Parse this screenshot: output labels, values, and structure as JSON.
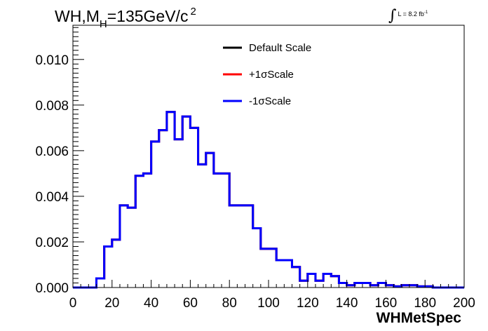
{
  "header": {
    "title_pre": "WH,M",
    "title_sub": "H",
    "title_post": "=135GeV/c",
    "title_sup": "2",
    "lumi_text": "L = 8.2 fb",
    "lumi_sup": "-1"
  },
  "colors": {
    "default": "#000000",
    "plus": "#ff0000",
    "minus": "#0000ff",
    "frame": "#000000"
  },
  "chart_data": {
    "type": "line",
    "style": "step-histogram",
    "title": "WH,MH=135GeV/c2",
    "xlabel": "WHMetSpec",
    "ylabel": "",
    "xlim": [
      0,
      200
    ],
    "ylim": [
      0,
      0.0115
    ],
    "bin_width": 4,
    "x_ticks": [
      0,
      20,
      40,
      60,
      80,
      100,
      120,
      140,
      160,
      180,
      200
    ],
    "x_tick_labels": [
      "0",
      "20",
      "40",
      "60",
      "80",
      "100",
      "120",
      "140",
      "160",
      "180",
      "200"
    ],
    "y_ticks": [
      0,
      0.002,
      0.004,
      0.006,
      0.008,
      0.01
    ],
    "y_tick_labels": [
      "0.000",
      "0.002",
      "0.004",
      "0.006",
      "0.008",
      "0.010"
    ],
    "legend_position": "top-center",
    "grid": false,
    "bin_edges": [
      0,
      4,
      8,
      12,
      16,
      20,
      24,
      28,
      32,
      36,
      40,
      44,
      48,
      52,
      56,
      60,
      64,
      68,
      72,
      76,
      80,
      84,
      88,
      92,
      96,
      100,
      104,
      108,
      112,
      116,
      120,
      124,
      128,
      132,
      136,
      140,
      144,
      148,
      152,
      156,
      160,
      164,
      168,
      172,
      176,
      180,
      184,
      188,
      192,
      196,
      200
    ],
    "series": [
      {
        "name": "Default Scale",
        "color": "#000000",
        "values": [
          0,
          0,
          0,
          0.0004,
          0.0018,
          0.0021,
          0.0036,
          0.0035,
          0.0049,
          0.005,
          0.0064,
          0.0069,
          0.0077,
          0.0065,
          0.0075,
          0.007,
          0.0054,
          0.0059,
          0.005,
          0.005,
          0.0036,
          0.0036,
          0.0036,
          0.0026,
          0.0017,
          0.0017,
          0.0012,
          0.0012,
          0.0009,
          0.0003,
          0.0006,
          0.0003,
          0.0006,
          0.0005,
          0.0002,
          0.0001,
          0.0002,
          0.0002,
          0.0001,
          0.0002,
          0.0001,
          5e-05,
          0.0001,
          0.0001,
          5e-05,
          5e-05,
          0,
          0,
          0,
          0
        ]
      },
      {
        "name": "+1σScale",
        "color": "#ff0000",
        "values": [
          0,
          0,
          0,
          0.0004,
          0.0018,
          0.0021,
          0.0036,
          0.0035,
          0.0049,
          0.005,
          0.0064,
          0.0069,
          0.0077,
          0.0065,
          0.0075,
          0.007,
          0.0054,
          0.0059,
          0.005,
          0.005,
          0.0036,
          0.0036,
          0.0036,
          0.0026,
          0.0017,
          0.0017,
          0.0012,
          0.0012,
          0.0009,
          0.0003,
          0.0006,
          0.0003,
          0.0006,
          0.0005,
          0.0002,
          0.0001,
          0.0002,
          0.0002,
          0.0001,
          0.0002,
          0.0001,
          5e-05,
          0.0001,
          0.0001,
          5e-05,
          5e-05,
          0,
          0,
          0,
          0
        ]
      },
      {
        "name": "-1σScale",
        "color": "#0000ff",
        "values": [
          0,
          0,
          0,
          0.0004,
          0.0018,
          0.0021,
          0.0036,
          0.0035,
          0.0049,
          0.005,
          0.0064,
          0.0069,
          0.0077,
          0.0065,
          0.0075,
          0.007,
          0.0054,
          0.0059,
          0.005,
          0.005,
          0.0036,
          0.0036,
          0.0036,
          0.0026,
          0.0017,
          0.0017,
          0.0012,
          0.0012,
          0.0009,
          0.0003,
          0.0006,
          0.0003,
          0.0006,
          0.0005,
          0.0002,
          0.0001,
          0.0002,
          0.0002,
          0.0001,
          0.0002,
          0.0001,
          5e-05,
          0.0001,
          0.0001,
          5e-05,
          5e-05,
          0,
          0,
          0,
          0
        ]
      }
    ]
  }
}
